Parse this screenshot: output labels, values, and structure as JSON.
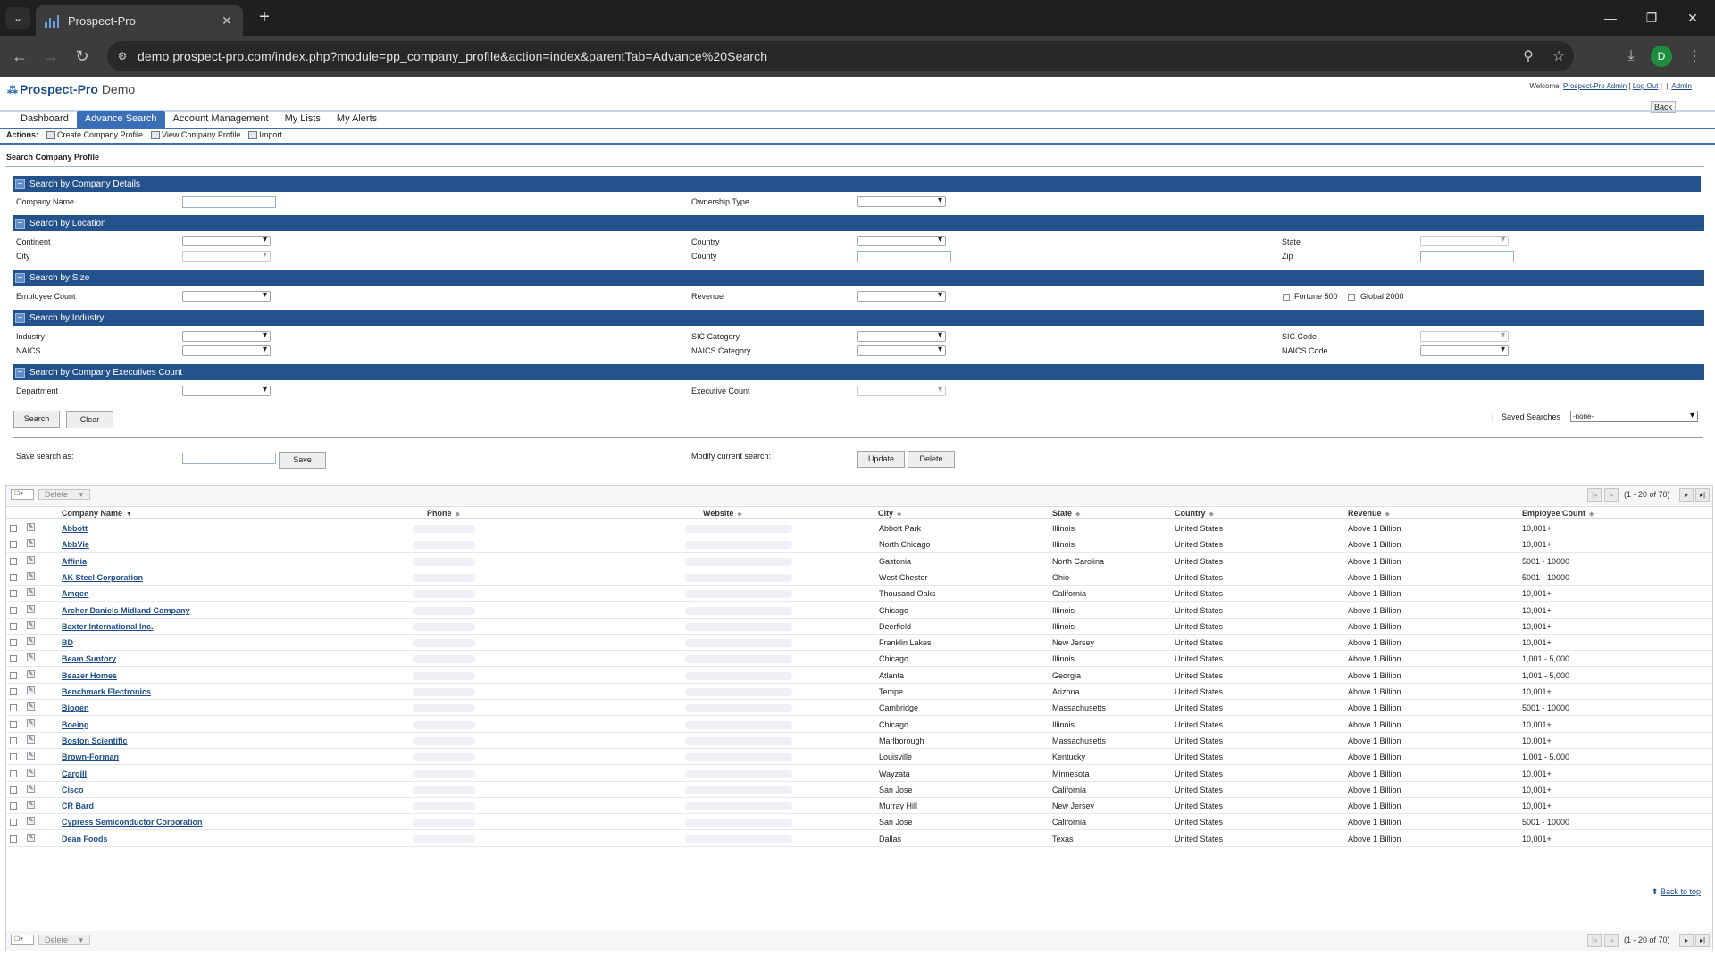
{
  "browser": {
    "tab_title": "Prospect-Pro",
    "url": "demo.prospect-pro.com/index.php?module=pp_company_profile&action=index&parentTab=Advance%20Search",
    "profile_initial": "D"
  },
  "header": {
    "logo": "Prospect-Pro",
    "logo_suffix": "Demo",
    "welcome": "Welcome,",
    "user": "Prospect-Pro Admin",
    "logout": "Log Out",
    "admin": "Admin",
    "back": "Back"
  },
  "nav": {
    "tabs": [
      {
        "label": "Dashboard"
      },
      {
        "label": "Advance Search"
      },
      {
        "label": "Account Management"
      },
      {
        "label": "My Lists"
      },
      {
        "label": "My Alerts"
      }
    ]
  },
  "actions": {
    "label": "Actions:",
    "items": [
      "Create Company Profile",
      "View Company Profile",
      "Import"
    ]
  },
  "search": {
    "title": "Search Company Profile",
    "sections": {
      "details": "Search by Company Details",
      "location": "Search by Location",
      "size": "Search by Size",
      "industry": "Search by Industry",
      "executives": "Search by Company Executives Count"
    },
    "fields": {
      "company_name": "Company Name",
      "ownership_type": "Ownership Type",
      "continent": "Continent",
      "country": "Country",
      "state": "State",
      "city": "City",
      "county": "County",
      "zip": "Zip",
      "employee_count": "Employee Count",
      "revenue": "Revenue",
      "fortune500": "Fortune 500",
      "global2000": "Global 2000",
      "industry": "Industry",
      "sic_category": "SIC Category",
      "sic_code": "SIC Code",
      "naics": "NAICS",
      "naics_category": "NAICS Category",
      "naics_code": "NAICS Code",
      "department": "Department",
      "executive_count": "Executive Count"
    },
    "buttons": {
      "search": "Search",
      "clear": "Clear",
      "save": "Save",
      "update": "Update",
      "delete": "Delete"
    },
    "saved_searches_label": "Saved Searches",
    "saved_searches_value": "-none-",
    "save_as_label": "Save search as:",
    "modify_label": "Modify current search:"
  },
  "list": {
    "delete_label": "Delete",
    "pager_text": "(1 - 20 of 70)",
    "columns": [
      "Company Name",
      "Phone",
      "Website",
      "City",
      "State",
      "Country",
      "Revenue",
      "Employee Count"
    ],
    "rows": [
      {
        "name": "Abbott",
        "city": "Abbott Park",
        "state": "Illinois",
        "country": "United States",
        "revenue": "Above 1 Billion",
        "employees": "10,001+"
      },
      {
        "name": "AbbVie",
        "city": "North Chicago",
        "state": "Illinois",
        "country": "United States",
        "revenue": "Above 1 Billion",
        "employees": "10,001+"
      },
      {
        "name": "Affinia",
        "city": "Gastonia",
        "state": "North Carolina",
        "country": "United States",
        "revenue": "Above 1 Billion",
        "employees": "5001 - 10000"
      },
      {
        "name": "AK Steel Corporation",
        "city": "West Chester",
        "state": "Ohio",
        "country": "United States",
        "revenue": "Above 1 Billion",
        "employees": "5001 - 10000"
      },
      {
        "name": "Amgen",
        "city": "Thousand Oaks",
        "state": "California",
        "country": "United States",
        "revenue": "Above 1 Billion",
        "employees": "10,001+"
      },
      {
        "name": "Archer Daniels Midland Company",
        "city": "Chicago",
        "state": "Illinois",
        "country": "United States",
        "revenue": "Above 1 Billion",
        "employees": "10,001+"
      },
      {
        "name": "Baxter International Inc.",
        "city": "Deerfield",
        "state": "Illinois",
        "country": "United States",
        "revenue": "Above 1 Billion",
        "employees": "10,001+"
      },
      {
        "name": "BD",
        "city": "Franklin Lakes",
        "state": "New Jersey",
        "country": "United States",
        "revenue": "Above 1 Billion",
        "employees": "10,001+"
      },
      {
        "name": "Beam Suntory",
        "city": "Chicago",
        "state": "Illinois",
        "country": "United States",
        "revenue": "Above 1 Billion",
        "employees": "1,001 - 5,000"
      },
      {
        "name": "Beazer Homes",
        "city": "Atlanta",
        "state": "Georgia",
        "country": "United States",
        "revenue": "Above 1 Billion",
        "employees": "1,001 - 5,000"
      },
      {
        "name": "Benchmark Electronics",
        "city": "Tempe",
        "state": "Arizona",
        "country": "United States",
        "revenue": "Above 1 Billion",
        "employees": "10,001+"
      },
      {
        "name": "Biogen",
        "city": "Cambridge",
        "state": "Massachusetts",
        "country": "United States",
        "revenue": "Above 1 Billion",
        "employees": "5001 - 10000"
      },
      {
        "name": "Boeing",
        "city": "Chicago",
        "state": "Illinois",
        "country": "United States",
        "revenue": "Above 1 Billion",
        "employees": "10,001+"
      },
      {
        "name": "Boston Scientific",
        "city": "Marlborough",
        "state": "Massachusetts",
        "country": "United States",
        "revenue": "Above 1 Billion",
        "employees": "10,001+"
      },
      {
        "name": "Brown-Forman",
        "city": "Louisville",
        "state": "Kentucky",
        "country": "United States",
        "revenue": "Above 1 Billion",
        "employees": "1,001 - 5,000"
      },
      {
        "name": "Cargill",
        "city": "Wayzata",
        "state": "Minnesota",
        "country": "United States",
        "revenue": "Above 1 Billion",
        "employees": "10,001+"
      },
      {
        "name": "Cisco",
        "city": "San Jose",
        "state": "California",
        "country": "United States",
        "revenue": "Above 1 Billion",
        "employees": "10,001+"
      },
      {
        "name": "CR Bard",
        "city": "Murray Hill",
        "state": "New Jersey",
        "country": "United States",
        "revenue": "Above 1 Billion",
        "employees": "10,001+"
      },
      {
        "name": "Cypress Semiconductor Corporation",
        "city": "San Jose",
        "state": "California",
        "country": "United States",
        "revenue": "Above 1 Billion",
        "employees": "5001 - 10000"
      },
      {
        "name": "Dean Foods",
        "city": "Dallas",
        "state": "Texas",
        "country": "United States",
        "revenue": "Above 1 Billion",
        "employees": "10,001+"
      }
    ]
  },
  "footer": {
    "back_to_top": "Back to top"
  },
  "colors": {
    "section_bar": "#24528d",
    "nav_active": "#3a6fb7",
    "link": "#1d4c8a"
  }
}
